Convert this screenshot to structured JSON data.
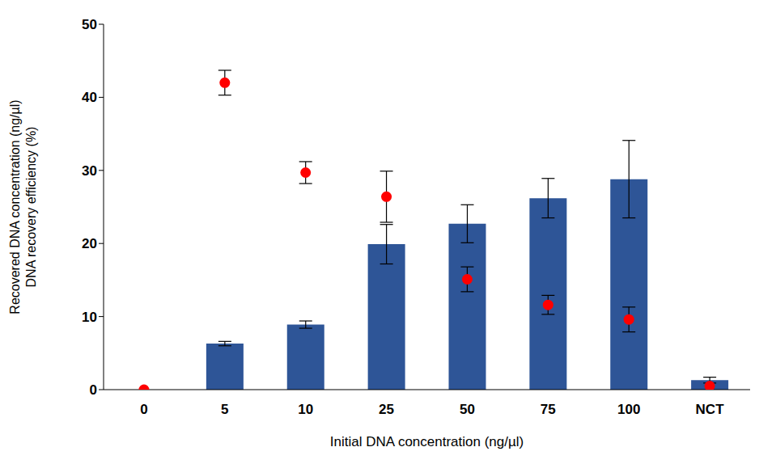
{
  "chart_data": {
    "type": "combo",
    "xlabel": "Initial DNA concentration (ng/µl)",
    "ylabel": [
      "Recovered DNA concentration (ng/µl)",
      "DNA recovery efficiency (%)"
    ],
    "categories": [
      "0",
      "5",
      "10",
      "25",
      "50",
      "75",
      "100",
      "NCT"
    ],
    "ylim": [
      0,
      50
    ],
    "yticks": [
      0,
      10,
      20,
      30,
      40,
      50
    ],
    "grid": false,
    "series": [
      {
        "type": "bar",
        "color": "#2e5597",
        "values": [
          null,
          6.3,
          8.9,
          19.9,
          22.7,
          26.2,
          28.8,
          1.3
        ],
        "errors": [
          null,
          0.3,
          0.5,
          2.7,
          2.6,
          2.7,
          5.3,
          0.4
        ]
      },
      {
        "type": "scatter",
        "color": "#ff0000",
        "marker": "circle",
        "values": [
          0,
          42.0,
          29.7,
          26.4,
          15.1,
          11.6,
          9.6,
          0.5
        ],
        "errors": [
          0,
          1.7,
          1.5,
          3.5,
          1.7,
          1.3,
          1.7,
          0
        ]
      }
    ]
  }
}
